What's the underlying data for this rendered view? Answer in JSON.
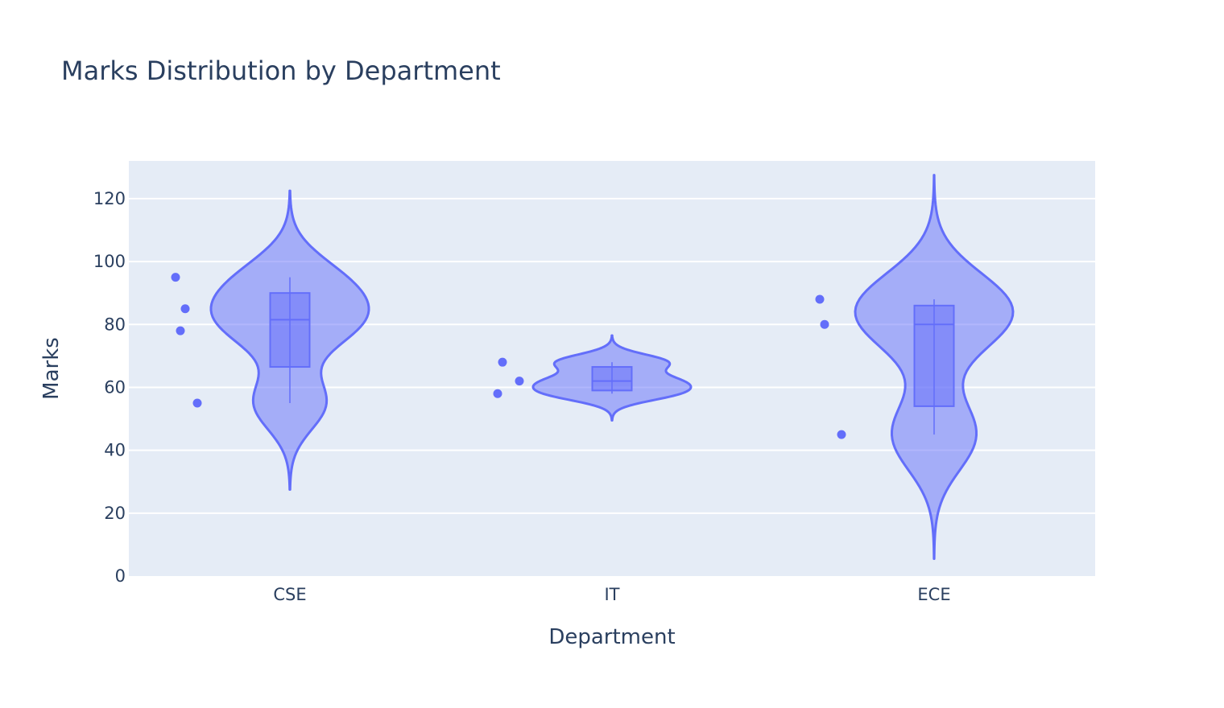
{
  "chart_data": {
    "type": "violin",
    "title": "Marks Distribution by Department",
    "xlabel": "Department",
    "ylabel": "Marks",
    "ylim": [
      0,
      132
    ],
    "yticks": [
      0,
      20,
      40,
      60,
      80,
      100,
      120
    ],
    "categories": [
      "CSE",
      "IT",
      "ECE"
    ],
    "grid": true,
    "legend": "none",
    "color": "#636efa",
    "plot_bg": "#e5ecf6",
    "groups": [
      {
        "category": "CSE",
        "points": [
          95,
          78,
          55,
          85
        ],
        "box": {
          "q1": 66.5,
          "median": 81.5,
          "q3": 90,
          "min": 55,
          "max": 95
        },
        "violin_span": [
          27.5,
          122.5
        ]
      },
      {
        "category": "IT",
        "points": [
          58,
          68,
          62
        ],
        "box": {
          "q1": 59,
          "median": 62,
          "q3": 66.5,
          "min": 58,
          "max": 68
        },
        "violin_span": [
          49.5,
          76.5
        ]
      },
      {
        "category": "ECE",
        "points": [
          88,
          80,
          45
        ],
        "box": {
          "q1": 54,
          "median": 80,
          "q3": 86,
          "min": 45,
          "max": 88
        },
        "violin_span": [
          5.5,
          127.5
        ]
      }
    ]
  }
}
